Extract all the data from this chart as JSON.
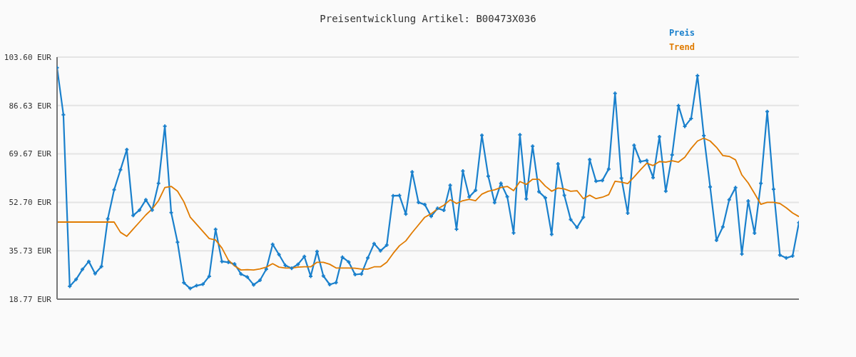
{
  "chart_data": {
    "type": "line",
    "title": "Preisentwicklung Artikel: B00473X036",
    "categories": [
      null,
      null,
      null,
      null,
      null,
      null,
      null,
      null,
      null,
      null,
      null,
      null,
      null,
      null,
      null,
      null,
      null,
      null,
      null,
      null,
      null,
      null,
      null,
      null,
      null,
      null,
      null,
      null,
      null,
      null,
      null,
      null,
      null,
      null,
      null,
      null,
      null,
      null,
      null,
      null,
      null,
      null,
      null,
      null,
      null,
      null,
      null,
      null,
      null,
      null,
      null,
      null,
      null,
      null,
      null,
      null,
      null,
      null,
      null,
      null,
      null,
      null,
      null,
      null,
      null,
      null,
      null,
      null,
      null,
      null,
      null,
      null,
      null,
      null,
      null,
      null,
      null,
      null,
      null,
      null,
      null,
      null,
      null,
      null,
      null,
      null,
      null,
      null,
      null,
      null,
      null,
      null,
      null,
      null,
      null,
      null,
      null,
      null,
      null,
      null,
      null,
      null,
      null,
      null,
      null,
      null,
      null,
      null,
      null,
      null,
      null,
      null,
      null,
      null,
      null,
      null,
      null,
      null
    ],
    "series": [
      {
        "name": "Preis",
        "color": "#1a80cc",
        "marker": "cross",
        "values": [
          99.9,
          83.4,
          23.3,
          25.7,
          29.2,
          32.0,
          27.7,
          30.2,
          46.9,
          57.1,
          64.1,
          71.2,
          48.1,
          50.0,
          53.6,
          50.0,
          59.4,
          79.4,
          49.1,
          38.7,
          24.5,
          22.5,
          23.5,
          24.0,
          26.8,
          43.2,
          32.0,
          31.7,
          31.1,
          27.6,
          26.5,
          23.8,
          25.4,
          29.3,
          38.0,
          34.4,
          30.6,
          29.6,
          31.0,
          33.7,
          26.8,
          35.5,
          26.9,
          23.9,
          24.6,
          33.5,
          31.8,
          27.4,
          27.6,
          33.2,
          38.2,
          35.7,
          37.7,
          55.0,
          55.1,
          48.6,
          63.4,
          52.7,
          51.9,
          47.8,
          50.6,
          49.9,
          58.7,
          43.3,
          63.7,
          54.6,
          56.9,
          76.2,
          61.9,
          52.6,
          59.4,
          54.7,
          42.0,
          76.4,
          53.9,
          72.4,
          56.4,
          54.3,
          41.5,
          66.2,
          55.2,
          46.7,
          43.9,
          47.5,
          67.7,
          60.1,
          60.4,
          64.4,
          90.9,
          61.2,
          48.9,
          72.7,
          67.0,
          67.4,
          61.4,
          75.7,
          56.6,
          69.3,
          86.6,
          79.3,
          82.1,
          97.1,
          76.1,
          58.1,
          39.4,
          44.1,
          53.6,
          57.9,
          34.6,
          53.2,
          41.9,
          59.4,
          84.5,
          57.3,
          34.2,
          33.2,
          33.9,
          45.6
        ]
      },
      {
        "name": "Trend",
        "color": "#e07b00",
        "marker": "none",
        "values": [
          45.8,
          45.8,
          45.8,
          45.8,
          45.8,
          45.8,
          45.8,
          45.8,
          45.8,
          45.8,
          42.2,
          40.8,
          43.3,
          45.8,
          48.3,
          50.4,
          53.3,
          57.9,
          58.3,
          56.6,
          52.9,
          47.5,
          45.0,
          42.5,
          40.0,
          39.5,
          36.7,
          32.5,
          30.4,
          29.0,
          29.1,
          29.0,
          29.4,
          30.0,
          31.2,
          30.0,
          29.7,
          29.7,
          30.0,
          30.1,
          30.1,
          31.7,
          31.7,
          31.0,
          29.7,
          29.7,
          29.7,
          29.6,
          29.3,
          29.3,
          30.1,
          30.1,
          31.7,
          34.8,
          37.5,
          39.2,
          42.1,
          44.8,
          47.5,
          48.7,
          50.4,
          51.7,
          53.6,
          52.3,
          53.3,
          53.8,
          53.3,
          55.6,
          56.6,
          57.1,
          57.9,
          58.3,
          56.8,
          60.0,
          59.0,
          60.8,
          60.8,
          58.4,
          56.6,
          57.7,
          57.4,
          56.6,
          56.8,
          54.0,
          55.2,
          54.0,
          54.5,
          55.4,
          60.1,
          59.8,
          59.3,
          61.6,
          64.1,
          66.4,
          65.6,
          67.0,
          66.8,
          67.3,
          66.8,
          68.5,
          71.6,
          74.2,
          75.2,
          74.2,
          72.0,
          69.1,
          68.8,
          67.6,
          62.3,
          59.5,
          55.8,
          52.0,
          52.7,
          52.7,
          52.3,
          50.8,
          49.0,
          47.7
        ]
      }
    ],
    "ylim": [
      18.77,
      103.6
    ],
    "yticks": [
      {
        "value": 18.77,
        "label": "18.77 EUR"
      },
      {
        "value": 35.73,
        "label": "35.73 EUR"
      },
      {
        "value": 52.7,
        "label": "52.70 EUR"
      },
      {
        "value": 69.67,
        "label": "69.67 EUR"
      },
      {
        "value": 86.63,
        "label": "86.63 EUR"
      },
      {
        "value": 103.6,
        "label": "103.60 EUR"
      }
    ],
    "grid": "y",
    "legend": "top right",
    "tick_labels": "y",
    "line_style": "solid"
  }
}
